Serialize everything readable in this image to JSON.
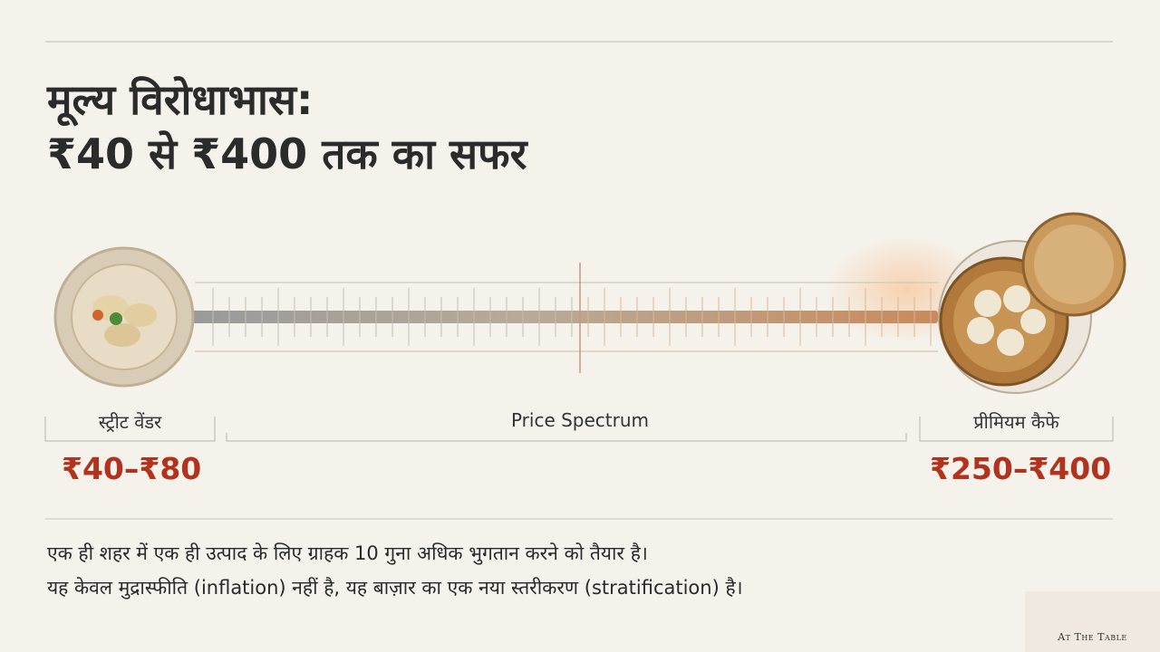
{
  "title": {
    "line1": "मूल्य विरोधाभास:",
    "line2": "₹40 से ₹400 तक का सफर"
  },
  "spectrum": {
    "left": {
      "label": "स्ट्रीट वेंडर",
      "price": "₹40–₹80"
    },
    "middle": {
      "label": "Price Spectrum"
    },
    "right": {
      "label": "प्रीमियम कैफे",
      "price": "₹250–₹400"
    }
  },
  "body": {
    "line1": "एक ही शहर में एक ही उत्पाद के लिए ग्राहक 10 गुना अधिक भुगतान करने को तैयार है।",
    "line2": "यह केवल मुद्रास्फीति (inflation) नहीं है, यह बाज़ार का एक नया स्तरीकरण (stratification) है।"
  },
  "logo": {
    "text": "At The Table"
  }
}
